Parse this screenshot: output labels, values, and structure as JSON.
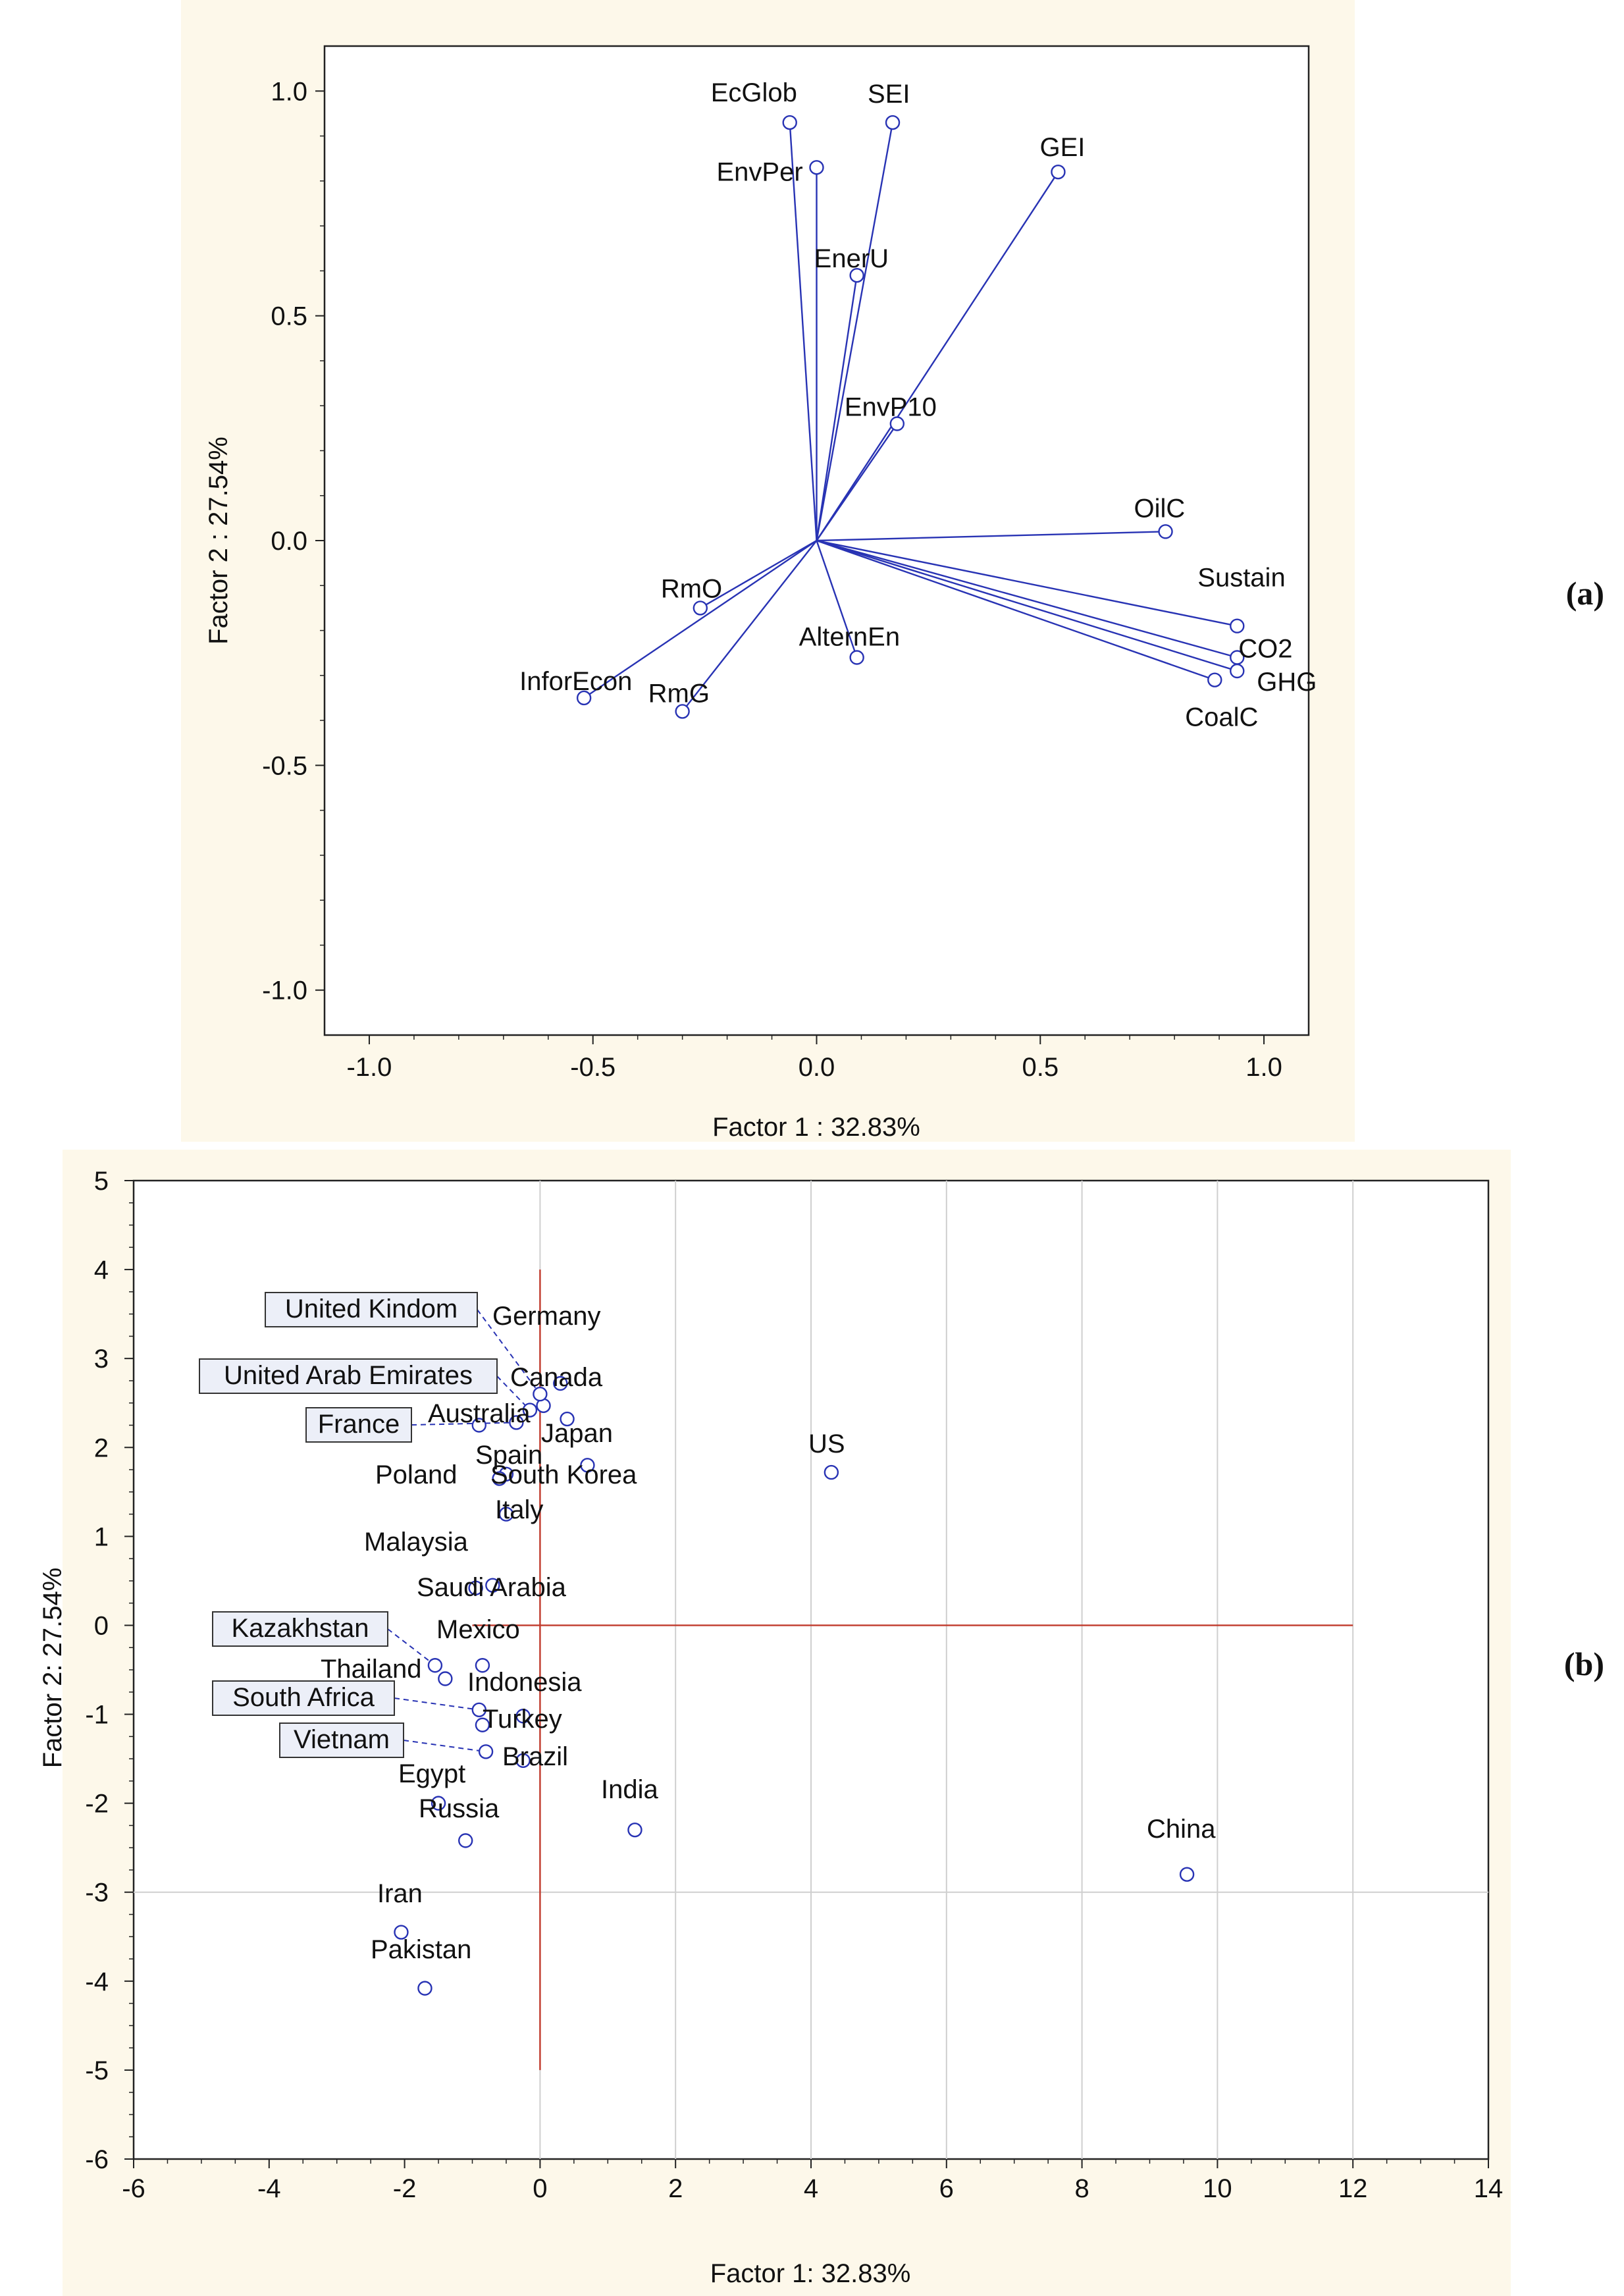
{
  "chart_data": [
    {
      "type": "scatter",
      "subtype": "loading-vectors",
      "panel_label": "(a)",
      "xlabel": "Factor 1 : 32.83%",
      "ylabel": "Factor 2 : 27.54%",
      "xlim": [
        -1.1,
        1.1
      ],
      "ylim": [
        -1.1,
        1.1
      ],
      "xticks": [
        -1.0,
        -0.5,
        0.0,
        0.5,
        1.0
      ],
      "xtick_labels": [
        "-1.0",
        "-0.5",
        "0.0",
        "0.5",
        "1.0"
      ],
      "yticks": [
        1.0,
        0.5,
        0.0,
        -0.5,
        -1.0
      ],
      "ytick_labels": [
        "1.0",
        "0.5",
        "0.0",
        "-0.5",
        "-1.0"
      ],
      "points": [
        {
          "name": "EcGlob",
          "x": -0.06,
          "y": 0.93
        },
        {
          "name": "SEI",
          "x": 0.17,
          "y": 0.93
        },
        {
          "name": "EnvPer",
          "x": 0.0,
          "y": 0.83
        },
        {
          "name": "GEI",
          "x": 0.54,
          "y": 0.82
        },
        {
          "name": "EnerU",
          "x": 0.09,
          "y": 0.59
        },
        {
          "name": "EnvP10",
          "x": 0.18,
          "y": 0.26
        },
        {
          "name": "OilC",
          "x": 0.78,
          "y": 0.02
        },
        {
          "name": "Sustain",
          "x": 0.94,
          "y": -0.19
        },
        {
          "name": "CO2",
          "x": 0.94,
          "y": -0.26
        },
        {
          "name": "GHG",
          "x": 0.94,
          "y": -0.29
        },
        {
          "name": "CoalC",
          "x": 0.89,
          "y": -0.31
        },
        {
          "name": "RmO",
          "x": -0.26,
          "y": -0.15
        },
        {
          "name": "AlternEn",
          "x": 0.09,
          "y": -0.26
        },
        {
          "name": "InforEcon",
          "x": -0.52,
          "y": -0.35
        },
        {
          "name": "RmG",
          "x": -0.3,
          "y": -0.38
        }
      ]
    },
    {
      "type": "scatter",
      "panel_label": "(b)",
      "xlabel": "Factor 1: 32.83%",
      "ylabel": "Factor 2: 27.54%",
      "xlim": [
        -6,
        14
      ],
      "ylim": [
        -6,
        5
      ],
      "xticks": [
        -6,
        -4,
        -2,
        0,
        2,
        4,
        6,
        8,
        10,
        12,
        14
      ],
      "xtick_labels": [
        "-6",
        "-4",
        "-2",
        "0",
        "2",
        "4",
        "6",
        "8",
        "10",
        "12",
        "14"
      ],
      "yticks": [
        5,
        4,
        3,
        2,
        1,
        0,
        -1,
        -2,
        -3,
        -4,
        -5,
        -6
      ],
      "ytick_labels": [
        "5",
        "4",
        "3",
        "2",
        "1",
        "0",
        "-1",
        "-2",
        "-3",
        "-4",
        "-5",
        "-6"
      ],
      "gridlines": {
        "x": [
          0,
          2,
          4,
          6,
          8,
          10,
          12
        ],
        "y": [
          -3
        ]
      },
      "reference_lines": {
        "vertical": {
          "x": 0,
          "y": [
            -5,
            4
          ]
        },
        "horizontal": {
          "y": 0,
          "x": [
            -1,
            12
          ]
        }
      },
      "points": [
        {
          "name": "US",
          "x": 4.3,
          "y": 1.72
        },
        {
          "name": "China",
          "x": 9.55,
          "y": -2.8
        },
        {
          "name": "India",
          "x": 1.4,
          "y": -2.3
        },
        {
          "name": "Germany",
          "x": 0.3,
          "y": 2.72
        },
        {
          "name": "Canada",
          "x": 0.05,
          "y": 2.47
        },
        {
          "name": "Australia",
          "x": -0.9,
          "y": 2.25
        },
        {
          "name": "Japan",
          "x": 0.4,
          "y": 2.32
        },
        {
          "name": "Spain",
          "x": -0.5,
          "y": 1.7
        },
        {
          "name": "South Korea",
          "x": 0.7,
          "y": 1.8
        },
        {
          "name": "Poland",
          "x": -0.6,
          "y": 1.65
        },
        {
          "name": "Italy",
          "x": -0.5,
          "y": 1.25
        },
        {
          "name": "Malaysia",
          "x": -0.95,
          "y": 0.42
        },
        {
          "name": "Saudi Arabia",
          "x": -0.7,
          "y": 0.45
        },
        {
          "name": "Mexico",
          "x": -0.85,
          "y": -0.45
        },
        {
          "name": "Thailand",
          "x": -1.4,
          "y": -0.6
        },
        {
          "name": "Indonesia",
          "x": -0.25,
          "y": -1.02
        },
        {
          "name": "Turkey",
          "x": -0.85,
          "y": -1.12
        },
        {
          "name": "Brazil",
          "x": -0.25,
          "y": -1.52
        },
        {
          "name": "Egypt",
          "x": -1.5,
          "y": -2.0
        },
        {
          "name": "Russia",
          "x": -1.1,
          "y": -2.42
        },
        {
          "name": "Iran",
          "x": -2.05,
          "y": -3.45
        },
        {
          "name": "Pakistan",
          "x": -1.7,
          "y": -4.08
        },
        {
          "name": "United Kindom",
          "x": 0.0,
          "y": 2.6,
          "boxed": true
        },
        {
          "name": "United Arab Emirates",
          "x": -0.15,
          "y": 2.42,
          "boxed": true
        },
        {
          "name": "France",
          "x": -0.35,
          "y": 2.28,
          "boxed": true
        },
        {
          "name": "Kazakhstan",
          "x": -1.55,
          "y": -0.45,
          "boxed": true
        },
        {
          "name": "South Africa",
          "x": -0.9,
          "y": -0.95,
          "boxed": true
        },
        {
          "name": "Vietnam",
          "x": -0.8,
          "y": -1.42,
          "boxed": true
        }
      ]
    }
  ]
}
